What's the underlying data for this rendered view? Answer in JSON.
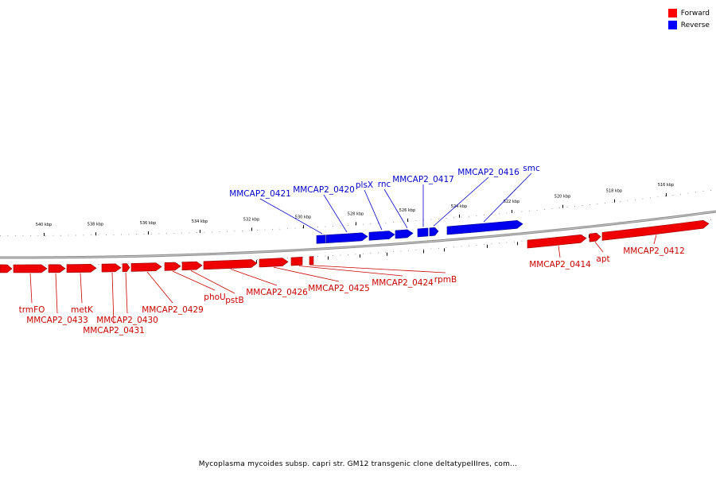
{
  "legend": [
    {
      "label": "Forward",
      "color": "#ff0000"
    },
    {
      "label": "Reverse",
      "color": "#0000ff"
    }
  ],
  "caption": "Mycoplasma mycoides subsp. capri str. GM12 transgenic clone deltatypeIIIres, com...",
  "ruler_ticks": [
    "540 kbp",
    "538 kbp",
    "536 kbp",
    "534 kbp",
    "532 kbp",
    "530 kbp",
    "528 kbp",
    "526 kbp",
    "524 kbp",
    "522 kbp",
    "520 kbp",
    "518 kbp",
    "516 kbp"
  ],
  "genes": [
    {
      "label": "trmFO",
      "strand": "forward"
    },
    {
      "label": "MMCAP2_0433",
      "strand": "forward"
    },
    {
      "label": "metK",
      "strand": "forward"
    },
    {
      "label": "MMCAP2_0431",
      "strand": "forward"
    },
    {
      "label": "MMCAP2_0430",
      "strand": "forward"
    },
    {
      "label": "MMCAP2_0429",
      "strand": "forward"
    },
    {
      "label": "phoU",
      "strand": "forward"
    },
    {
      "label": "pstB",
      "strand": "forward"
    },
    {
      "label": "MMCAP2_0426",
      "strand": "forward"
    },
    {
      "label": "MMCAP2_0425",
      "strand": "forward"
    },
    {
      "label": "MMCAP2_0424",
      "strand": "forward"
    },
    {
      "label": "rpmB",
      "strand": "forward"
    },
    {
      "label": "MMCAP2_0421",
      "strand": "reverse"
    },
    {
      "label": "MMCAP2_0420",
      "strand": "reverse"
    },
    {
      "label": "plsX",
      "strand": "reverse"
    },
    {
      "label": "rnc",
      "strand": "reverse"
    },
    {
      "label": "MMCAP2_0417",
      "strand": "reverse"
    },
    {
      "label": "MMCAP2_0416",
      "strand": "reverse"
    },
    {
      "label": "smc",
      "strand": "reverse"
    },
    {
      "label": "MMCAP2_0414",
      "strand": "forward"
    },
    {
      "label": "apt",
      "strand": "forward"
    },
    {
      "label": "MMCAP2_0412",
      "strand": "forward"
    }
  ]
}
